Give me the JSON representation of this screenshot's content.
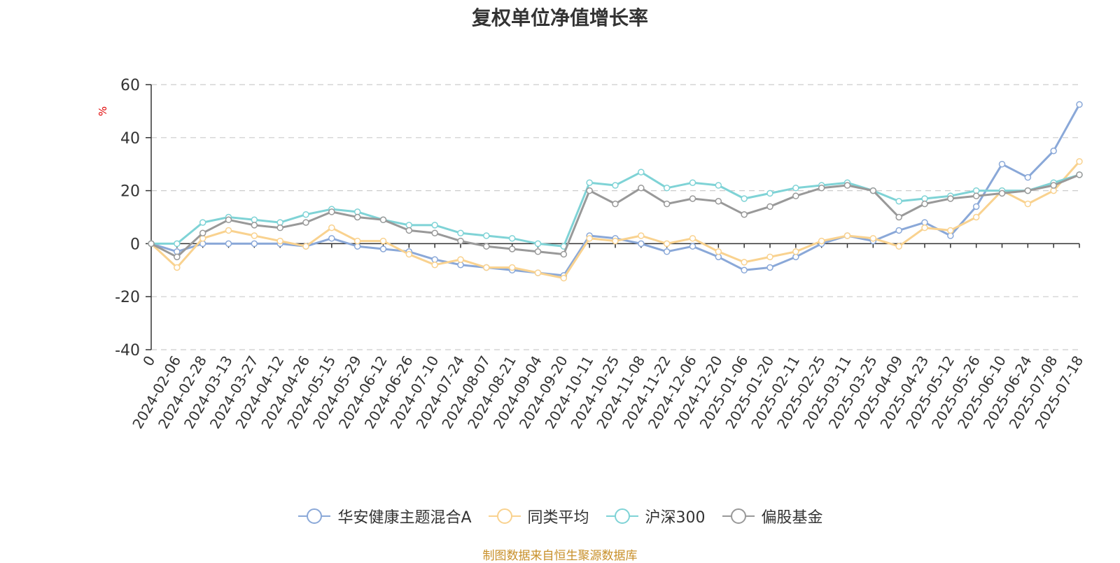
{
  "chart_data": {
    "type": "line",
    "title": "复权单位净值增长率",
    "ylabel": "%",
    "xlabel": "",
    "ylim": [
      -40,
      60
    ],
    "yticks": [
      -40,
      -20,
      0,
      20,
      40,
      60
    ],
    "grid": true,
    "legend_position": "bottom",
    "x_tick_labels": [
      "0",
      "2024-02-06",
      "2024-02-28",
      "2024-03-13",
      "2024-03-27",
      "2024-04-12",
      "2024-04-26",
      "2024-05-15",
      "2024-05-29",
      "2024-06-12",
      "2024-06-26",
      "2024-07-10",
      "2024-07-24",
      "2024-08-07",
      "2024-08-21",
      "2024-09-04",
      "2024-09-20",
      "2024-10-11",
      "2024-10-25",
      "2024-11-08",
      "2024-11-22",
      "2024-12-06",
      "2024-12-20",
      "2025-01-06",
      "2025-01-20",
      "2025-02-11",
      "2025-02-25",
      "2025-03-11",
      "2025-03-25",
      "2025-04-09",
      "2025-04-23",
      "2025-05-12",
      "2025-05-26",
      "2025-06-10",
      "2025-06-24",
      "2025-07-08",
      "2025-07-18"
    ],
    "x": [
      "0",
      "2024-02-06",
      "2024-02-28",
      "2024-03-13",
      "2024-03-27",
      "2024-04-12",
      "2024-04-26",
      "2024-05-15",
      "2024-05-29",
      "2024-06-12",
      "2024-06-26",
      "2024-07-10",
      "2024-07-24",
      "2024-08-07",
      "2024-08-21",
      "2024-09-04",
      "2024-09-20",
      "2024-10-11",
      "2024-10-25",
      "2024-11-08",
      "2024-11-22",
      "2024-12-06",
      "2024-12-20",
      "2025-01-06",
      "2025-01-20",
      "2025-02-11",
      "2025-02-25",
      "2025-03-11",
      "2025-03-25",
      "2025-04-09",
      "2025-04-23",
      "2025-05-12",
      "2025-05-26",
      "2025-06-10",
      "2025-06-24",
      "2025-07-08",
      "2025-07-18"
    ],
    "series": [
      {
        "name": "华安健康主题混合A",
        "color": "#8aa8d8",
        "values": [
          0,
          -3,
          0,
          0,
          0,
          0,
          -1,
          2,
          -1,
          -2,
          -3,
          -6,
          -8,
          -9,
          -10,
          -11,
          -12,
          3,
          2,
          0,
          -3,
          -1,
          -5,
          -10,
          -9,
          -5,
          0,
          3,
          1,
          5,
          8,
          3,
          14,
          30,
          25,
          35,
          52.5
        ]
      },
      {
        "name": "同类平均",
        "color": "#f9d28f",
        "values": [
          0,
          -9,
          2,
          5,
          3,
          1,
          -1,
          6,
          1,
          1,
          -4,
          -8,
          -6,
          -9,
          -9,
          -11,
          -13,
          2,
          1,
          3,
          0,
          2,
          -3,
          -7,
          -5,
          -3,
          1,
          3,
          2,
          -1,
          6,
          5,
          10,
          20,
          15,
          20,
          31
        ]
      },
      {
        "name": "沪深300",
        "color": "#7fd3d6",
        "values": [
          0,
          0,
          8,
          10,
          9,
          8,
          11,
          13,
          12,
          9,
          7,
          7,
          4,
          3,
          2,
          0,
          -1,
          23,
          22,
          27,
          21,
          23,
          22,
          17,
          19,
          21,
          22,
          23,
          20,
          16,
          17,
          18,
          20,
          20,
          20,
          23,
          26
        ]
      },
      {
        "name": "偏股基金",
        "color": "#999999",
        "values": [
          0,
          -5,
          4,
          9,
          7,
          6,
          8,
          12,
          10,
          9,
          5,
          4,
          1,
          -1,
          -2,
          -3,
          -4,
          20,
          15,
          21,
          15,
          17,
          16,
          11,
          14,
          18,
          21,
          22,
          20,
          10,
          15,
          17,
          18,
          19,
          20,
          22,
          26
        ]
      }
    ]
  },
  "source_note": "制图数据来自恒生聚源数据库"
}
